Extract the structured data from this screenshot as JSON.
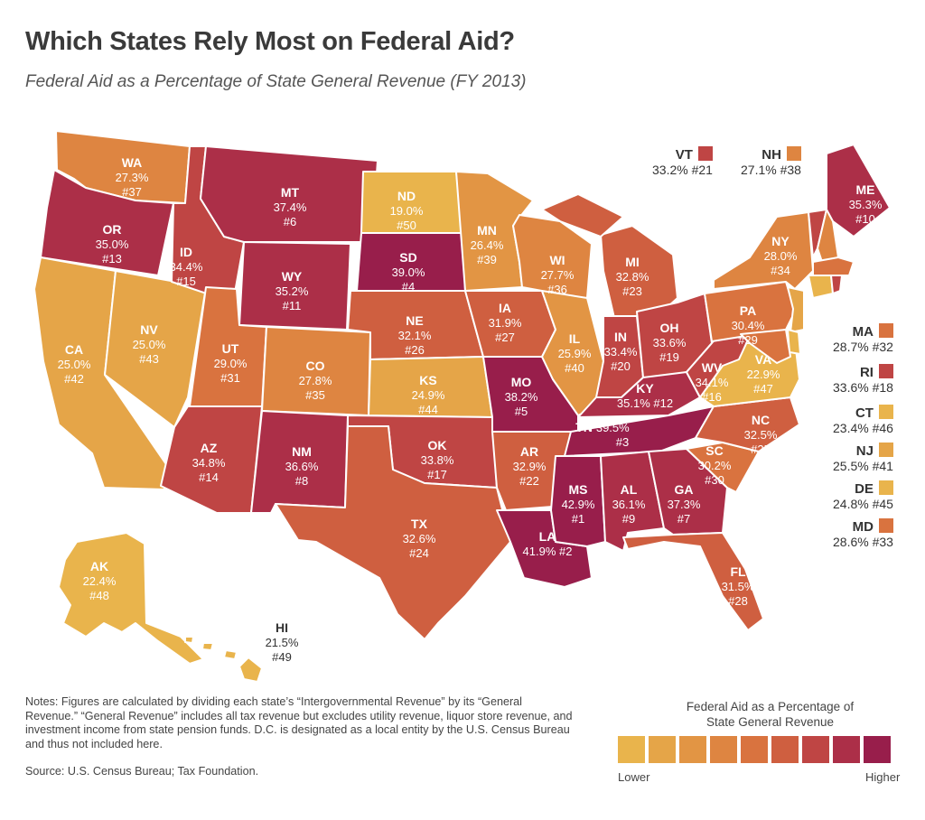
{
  "title": "Which States Rely Most on Federal Aid?",
  "subtitle": "Federal Aid as a Percentage of State General Revenue (FY 2013)",
  "colors": {
    "scale": [
      "#E9B44C",
      "#E5A548",
      "#E29544",
      "#DE8541",
      "#D9733F",
      "#CF5F40",
      "#BF4544",
      "#AC2F48",
      "#981E4B"
    ]
  },
  "states": {
    "WA": {
      "abbr": "WA",
      "value": "27.3%",
      "rank": "#37",
      "color": "#DE8541"
    },
    "OR": {
      "abbr": "OR",
      "value": "35.0%",
      "rank": "#13",
      "color": "#AC2F48"
    },
    "CA": {
      "abbr": "CA",
      "value": "25.0%",
      "rank": "#42",
      "color": "#E5A548"
    },
    "NV": {
      "abbr": "NV",
      "value": "25.0%",
      "rank": "#43",
      "color": "#E5A548"
    },
    "ID": {
      "abbr": "ID",
      "value": "34.4%",
      "rank": "#15",
      "color": "#BF4544"
    },
    "MT": {
      "abbr": "MT",
      "value": "37.4%",
      "rank": "#6",
      "color": "#AC2F48"
    },
    "WY": {
      "abbr": "WY",
      "value": "35.2%",
      "rank": "#11",
      "color": "#AC2F48"
    },
    "UT": {
      "abbr": "UT",
      "value": "29.0%",
      "rank": "#31",
      "color": "#D9733F"
    },
    "AZ": {
      "abbr": "AZ",
      "value": "34.8%",
      "rank": "#14",
      "color": "#BF4544"
    },
    "CO": {
      "abbr": "CO",
      "value": "27.8%",
      "rank": "#35",
      "color": "#DE8541"
    },
    "NM": {
      "abbr": "NM",
      "value": "36.6%",
      "rank": "#8",
      "color": "#AC2F48"
    },
    "ND": {
      "abbr": "ND",
      "value": "19.0%",
      "rank": "#50",
      "color": "#E9B44C"
    },
    "SD": {
      "abbr": "SD",
      "value": "39.0%",
      "rank": "#4",
      "color": "#981E4B"
    },
    "NE": {
      "abbr": "NE",
      "value": "32.1%",
      "rank": "#26",
      "color": "#CF5F40"
    },
    "KS": {
      "abbr": "KS",
      "value": "24.9%",
      "rank": "#44",
      "color": "#E5A548"
    },
    "OK": {
      "abbr": "OK",
      "value": "33.8%",
      "rank": "#17",
      "color": "#BF4544"
    },
    "TX": {
      "abbr": "TX",
      "value": "32.6%",
      "rank": "#24",
      "color": "#CF5F40"
    },
    "MN": {
      "abbr": "MN",
      "value": "26.4%",
      "rank": "#39",
      "color": "#E29544"
    },
    "IA": {
      "abbr": "IA",
      "value": "31.9%",
      "rank": "#27",
      "color": "#CF5F40"
    },
    "MO": {
      "abbr": "MO",
      "value": "38.2%",
      "rank": "#5",
      "color": "#981E4B"
    },
    "AR": {
      "abbr": "AR",
      "value": "32.9%",
      "rank": "#22",
      "color": "#CF5F40"
    },
    "LA": {
      "abbr": "LA",
      "value": "41.9%",
      "rank": "#2",
      "color": "#981E4B"
    },
    "WI": {
      "abbr": "WI",
      "value": "27.7%",
      "rank": "#36",
      "color": "#DE8541"
    },
    "IL": {
      "abbr": "IL",
      "value": "25.9%",
      "rank": "#40",
      "color": "#E29544"
    },
    "MI": {
      "abbr": "MI",
      "value": "32.8%",
      "rank": "#23",
      "color": "#CF5F40"
    },
    "IN": {
      "abbr": "IN",
      "value": "33.4%",
      "rank": "#20",
      "color": "#BF4544"
    },
    "OH": {
      "abbr": "OH",
      "value": "33.6%",
      "rank": "#19",
      "color": "#BF4544"
    },
    "KY": {
      "abbr": "KY",
      "value": "35.1%",
      "rank": "#12",
      "color": "#AC2F48"
    },
    "TN": {
      "abbr": "TN",
      "value": "39.5%",
      "rank": "#3",
      "color": "#981E4B"
    },
    "MS": {
      "abbr": "MS",
      "value": "42.9%",
      "rank": "#1",
      "color": "#981E4B"
    },
    "AL": {
      "abbr": "AL",
      "value": "36.1%",
      "rank": "#9",
      "color": "#AC2F48"
    },
    "GA": {
      "abbr": "GA",
      "value": "37.3%",
      "rank": "#7",
      "color": "#AC2F48"
    },
    "FL": {
      "abbr": "FL",
      "value": "31.5%",
      "rank": "#28",
      "color": "#CF5F40"
    },
    "SC": {
      "abbr": "SC",
      "value": "30.2%",
      "rank": "#30",
      "color": "#D9733F"
    },
    "NC": {
      "abbr": "NC",
      "value": "32.5%",
      "rank": "#25",
      "color": "#CF5F40"
    },
    "VA": {
      "abbr": "VA",
      "value": "22.9%",
      "rank": "#47",
      "color": "#E9B44C"
    },
    "WV": {
      "abbr": "WV",
      "value": "34.1%",
      "rank": "#16",
      "color": "#BF4544"
    },
    "PA": {
      "abbr": "PA",
      "value": "30.4%",
      "rank": "#29",
      "color": "#D9733F"
    },
    "NY": {
      "abbr": "NY",
      "value": "28.0%",
      "rank": "#34",
      "color": "#DE8541"
    },
    "ME": {
      "abbr": "ME",
      "value": "35.3%",
      "rank": "#10",
      "color": "#AC2F48"
    },
    "AK": {
      "abbr": "AK",
      "value": "22.4%",
      "rank": "#48",
      "color": "#E9B44C"
    },
    "HI": {
      "abbr": "HI",
      "value": "21.5%",
      "rank": "#49",
      "color": "#E9B44C"
    }
  },
  "small_states": {
    "VT": {
      "abbr": "VT",
      "text": "33.2% #21",
      "color": "#BF4544"
    },
    "NH": {
      "abbr": "NH",
      "text": "27.1% #38",
      "color": "#DE8541"
    },
    "MA": {
      "abbr": "MA",
      "text": "28.7% #32",
      "color": "#D9733F"
    },
    "RI": {
      "abbr": "RI",
      "text": "33.6% #18",
      "color": "#BF4544"
    },
    "CT": {
      "abbr": "CT",
      "text": "23.4% #46",
      "color": "#E9B44C"
    },
    "NJ": {
      "abbr": "NJ",
      "text": "25.5% #41",
      "color": "#E5A548"
    },
    "DE": {
      "abbr": "DE",
      "text": "24.8% #45",
      "color": "#E9B44C"
    },
    "MD": {
      "abbr": "MD",
      "text": "28.6% #33",
      "color": "#D9733F"
    }
  },
  "notes": "Notes: Figures are calculated by dividing each state’s “Intergovernmental Revenue” by its “General Revenue.” “General Revenue” includes all tax revenue but excludes utility revenue, liquor store revenue, and investment income from state pension funds. D.C. is designated as a local entity by the U.S. Census Bureau and thus not included here.",
  "source": "Source: U.S. Census Bureau; Tax Foundation.",
  "legend": {
    "title_line1": "Federal Aid as a Percentage of",
    "title_line2": "State General Revenue",
    "low": "Lower",
    "high": "Higher"
  }
}
